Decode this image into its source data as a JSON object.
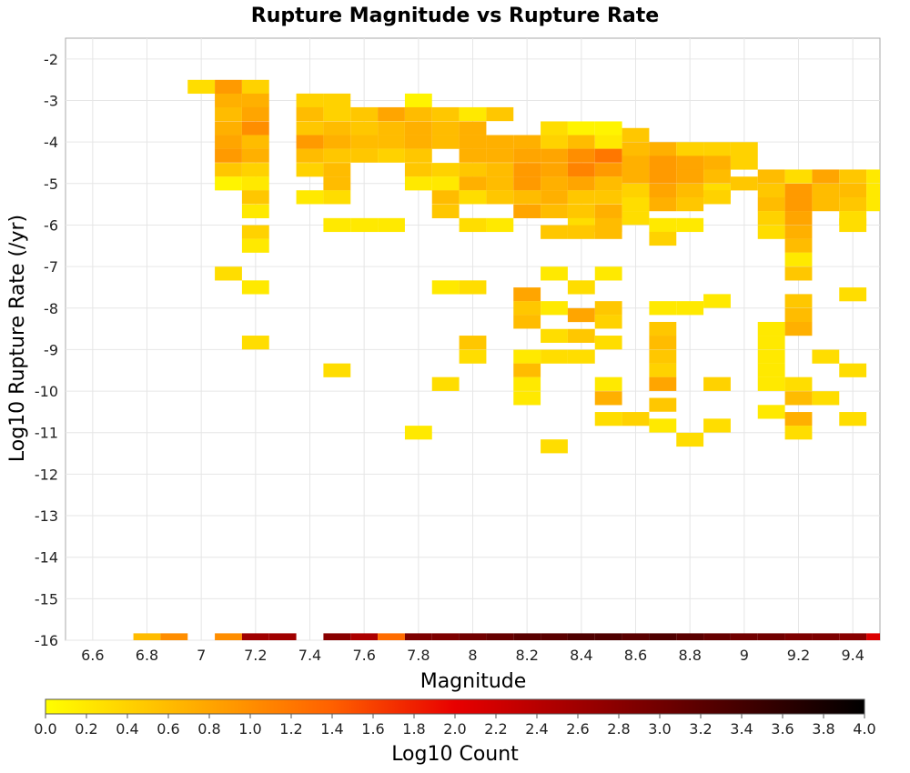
{
  "chart_data": {
    "type": "heatmap",
    "title": "Rupture Magnitude vs Rupture Rate",
    "xlabel": "Magnitude",
    "ylabel": "Log10 Rupture Rate (/yr)",
    "colorbar_label": "Log10 Count",
    "x_ticks": [
      "6.6",
      "6.8",
      "7",
      "7.2",
      "7.4",
      "7.6",
      "7.8",
      "8",
      "8.2",
      "8.4",
      "8.6",
      "8.8",
      "9",
      "9.2",
      "9.4"
    ],
    "y_ticks": [
      "-2",
      "-3",
      "-4",
      "-5",
      "-6",
      "-7",
      "-8",
      "-9",
      "-10",
      "-11",
      "-12",
      "-13",
      "-14",
      "-15",
      "-16"
    ],
    "colorbar_ticks": [
      "0.0",
      "0.2",
      "0.4",
      "0.6",
      "0.8",
      "1.0",
      "1.2",
      "1.4",
      "1.6",
      "1.8",
      "2.0",
      "2.2",
      "2.4",
      "2.6",
      "2.8",
      "3.0",
      "3.2",
      "3.4",
      "3.6",
      "3.8",
      "4.0"
    ],
    "xlim": [
      6.5,
      9.5
    ],
    "ylim": [
      -16,
      -1.5
    ],
    "clim": [
      0,
      4
    ],
    "bin_width_x": 0.1,
    "bin_height_y": 0.3333,
    "colormap": [
      "#ffff00",
      "#ffa500",
      "#ff6000",
      "#e80000",
      "#a00000",
      "#5a0000",
      "#000000"
    ],
    "grid": true,
    "cells": [
      [
        7.0,
        -2.67,
        0.3
      ],
      [
        7.1,
        -2.67,
        0.9
      ],
      [
        7.2,
        -2.67,
        0.4
      ],
      [
        7.1,
        -3.0,
        0.7
      ],
      [
        7.2,
        -3.0,
        0.7
      ],
      [
        7.1,
        -3.33,
        0.6
      ],
      [
        7.2,
        -3.33,
        0.8
      ],
      [
        7.1,
        -3.67,
        0.7
      ],
      [
        7.2,
        -3.67,
        1.0
      ],
      [
        7.1,
        -4.0,
        0.8
      ],
      [
        7.2,
        -4.0,
        0.6
      ],
      [
        7.1,
        -4.33,
        0.9
      ],
      [
        7.2,
        -4.33,
        0.7
      ],
      [
        7.1,
        -4.67,
        0.5
      ],
      [
        7.2,
        -4.67,
        0.4
      ],
      [
        7.2,
        -5.0,
        0.2
      ],
      [
        7.1,
        -5.0,
        0.1
      ],
      [
        7.2,
        -5.33,
        0.5
      ],
      [
        7.2,
        -5.67,
        0.2
      ],
      [
        7.2,
        -6.17,
        0.4
      ],
      [
        7.2,
        -6.5,
        0.2
      ],
      [
        7.1,
        -7.17,
        0.3
      ],
      [
        7.2,
        -7.5,
        0.2
      ],
      [
        7.2,
        -8.83,
        0.3
      ],
      [
        7.4,
        -3.0,
        0.4
      ],
      [
        7.5,
        -3.0,
        0.4
      ],
      [
        7.4,
        -3.33,
        0.6
      ],
      [
        7.5,
        -3.33,
        0.4
      ],
      [
        7.6,
        -3.33,
        0.5
      ],
      [
        7.7,
        -3.33,
        0.8
      ],
      [
        7.4,
        -3.67,
        0.5
      ],
      [
        7.5,
        -3.67,
        0.6
      ],
      [
        7.6,
        -3.67,
        0.5
      ],
      [
        7.7,
        -3.67,
        0.6
      ],
      [
        7.4,
        -4.0,
        0.9
      ],
      [
        7.5,
        -4.0,
        0.7
      ],
      [
        7.6,
        -4.0,
        0.6
      ],
      [
        7.7,
        -4.0,
        0.6
      ],
      [
        7.4,
        -4.33,
        0.6
      ],
      [
        7.5,
        -4.33,
        0.5
      ],
      [
        7.6,
        -4.33,
        0.5
      ],
      [
        7.7,
        -4.33,
        0.4
      ],
      [
        7.4,
        -4.67,
        0.4
      ],
      [
        7.5,
        -4.67,
        0.6
      ],
      [
        7.5,
        -5.0,
        0.6
      ],
      [
        7.4,
        -5.33,
        0.2
      ],
      [
        7.5,
        -5.33,
        0.3
      ],
      [
        7.5,
        -6.0,
        0.2
      ],
      [
        7.6,
        -6.0,
        0.2
      ],
      [
        7.7,
        -6.0,
        0.2
      ],
      [
        7.5,
        -9.5,
        0.3
      ],
      [
        7.8,
        -3.0,
        0.1
      ],
      [
        7.8,
        -3.33,
        0.6
      ],
      [
        7.9,
        -3.33,
        0.5
      ],
      [
        8.0,
        -3.33,
        0.2
      ],
      [
        8.1,
        -3.33,
        0.5
      ],
      [
        7.8,
        -3.67,
        0.7
      ],
      [
        7.9,
        -3.67,
        0.6
      ],
      [
        8.0,
        -3.67,
        0.7
      ],
      [
        7.8,
        -4.0,
        0.7
      ],
      [
        7.9,
        -4.0,
        0.6
      ],
      [
        8.0,
        -4.0,
        0.7
      ],
      [
        8.1,
        -4.0,
        0.7
      ],
      [
        8.2,
        -4.0,
        0.7
      ],
      [
        7.8,
        -4.33,
        0.5
      ],
      [
        8.0,
        -4.33,
        0.7
      ],
      [
        8.1,
        -4.33,
        0.7
      ],
      [
        8.2,
        -4.33,
        0.8
      ],
      [
        7.8,
        -4.67,
        0.5
      ],
      [
        7.9,
        -4.67,
        0.4
      ],
      [
        8.0,
        -4.67,
        0.5
      ],
      [
        8.1,
        -4.67,
        0.6
      ],
      [
        8.2,
        -4.67,
        0.9
      ],
      [
        7.8,
        -5.0,
        0.2
      ],
      [
        7.9,
        -5.0,
        0.2
      ],
      [
        8.0,
        -5.0,
        0.7
      ],
      [
        8.1,
        -5.0,
        0.6
      ],
      [
        8.2,
        -5.0,
        0.9
      ],
      [
        7.9,
        -5.33,
        0.6
      ],
      [
        8.0,
        -5.33,
        0.3
      ],
      [
        8.1,
        -5.33,
        0.5
      ],
      [
        8.2,
        -5.33,
        0.6
      ],
      [
        7.9,
        -5.67,
        0.5
      ],
      [
        8.2,
        -5.67,
        0.8
      ],
      [
        8.0,
        -6.0,
        0.3
      ],
      [
        8.1,
        -6.0,
        0.2
      ],
      [
        7.9,
        -7.5,
        0.2
      ],
      [
        8.0,
        -7.5,
        0.3
      ],
      [
        8.2,
        -7.67,
        0.8
      ],
      [
        8.2,
        -8.0,
        0.5
      ],
      [
        8.3,
        -8.0,
        0.2
      ],
      [
        8.2,
        -8.33,
        0.6
      ],
      [
        8.0,
        -8.83,
        0.5
      ],
      [
        8.0,
        -9.17,
        0.3
      ],
      [
        8.2,
        -9.17,
        0.2
      ],
      [
        8.2,
        -9.5,
        0.6
      ],
      [
        7.9,
        -9.83,
        0.3
      ],
      [
        8.2,
        -9.83,
        0.2
      ],
      [
        8.2,
        -10.17,
        0.2
      ],
      [
        7.8,
        -11.0,
        0.2
      ],
      [
        8.3,
        -11.33,
        0.3
      ],
      [
        8.3,
        -3.67,
        0.3
      ],
      [
        8.4,
        -3.67,
        0.1
      ],
      [
        8.5,
        -3.67,
        0.1
      ],
      [
        8.3,
        -4.0,
        0.4
      ],
      [
        8.4,
        -4.0,
        0.6
      ],
      [
        8.5,
        -4.0,
        0.2
      ],
      [
        8.3,
        -4.33,
        0.8
      ],
      [
        8.4,
        -4.33,
        1.0
      ],
      [
        8.5,
        -4.33,
        1.2
      ],
      [
        8.3,
        -4.67,
        0.8
      ],
      [
        8.4,
        -4.67,
        1.1
      ],
      [
        8.5,
        -4.67,
        0.9
      ],
      [
        8.3,
        -5.0,
        0.7
      ],
      [
        8.4,
        -5.0,
        0.8
      ],
      [
        8.5,
        -5.0,
        0.6
      ],
      [
        8.3,
        -5.33,
        0.7
      ],
      [
        8.4,
        -5.33,
        0.5
      ],
      [
        8.5,
        -5.33,
        0.5
      ],
      [
        8.3,
        -5.67,
        0.6
      ],
      [
        8.4,
        -5.67,
        0.5
      ],
      [
        8.5,
        -5.67,
        0.7
      ],
      [
        8.4,
        -6.0,
        0.3
      ],
      [
        8.5,
        -6.0,
        0.6
      ],
      [
        8.3,
        -6.17,
        0.5
      ],
      [
        8.4,
        -6.17,
        0.5
      ],
      [
        8.5,
        -6.17,
        0.6
      ],
      [
        8.3,
        -7.17,
        0.2
      ],
      [
        8.5,
        -7.17,
        0.2
      ],
      [
        8.4,
        -7.5,
        0.3
      ],
      [
        8.5,
        -8.0,
        0.5
      ],
      [
        8.4,
        -8.17,
        0.8
      ],
      [
        8.5,
        -8.33,
        0.4
      ],
      [
        8.3,
        -8.67,
        0.3
      ],
      [
        8.4,
        -8.67,
        0.5
      ],
      [
        8.5,
        -8.83,
        0.3
      ],
      [
        8.4,
        -9.17,
        0.3
      ],
      [
        8.3,
        -9.17,
        0.3
      ],
      [
        8.5,
        -9.83,
        0.2
      ],
      [
        8.5,
        -10.17,
        0.7
      ],
      [
        8.6,
        -10.67,
        0.4
      ],
      [
        8.5,
        -10.67,
        0.3
      ],
      [
        8.6,
        -3.83,
        0.5
      ],
      [
        8.6,
        -4.17,
        0.6
      ],
      [
        8.7,
        -4.17,
        0.7
      ],
      [
        8.8,
        -4.17,
        0.4
      ],
      [
        8.9,
        -4.17,
        0.4
      ],
      [
        9.0,
        -4.17,
        0.4
      ],
      [
        8.6,
        -4.5,
        0.7
      ],
      [
        8.7,
        -4.5,
        0.9
      ],
      [
        8.8,
        -4.5,
        0.8
      ],
      [
        8.9,
        -4.5,
        0.7
      ],
      [
        9.0,
        -4.5,
        0.4
      ],
      [
        8.6,
        -4.83,
        0.7
      ],
      [
        8.7,
        -4.83,
        0.9
      ],
      [
        8.8,
        -4.83,
        0.8
      ],
      [
        8.9,
        -4.83,
        0.6
      ],
      [
        8.6,
        -5.17,
        0.4
      ],
      [
        8.7,
        -5.17,
        0.8
      ],
      [
        8.8,
        -5.17,
        0.6
      ],
      [
        8.9,
        -5.17,
        0.3
      ],
      [
        9.0,
        -5.0,
        0.5
      ],
      [
        8.6,
        -5.5,
        0.3
      ],
      [
        8.7,
        -5.5,
        0.7
      ],
      [
        8.8,
        -5.5,
        0.5
      ],
      [
        8.9,
        -5.33,
        0.4
      ],
      [
        8.6,
        -5.83,
        0.3
      ],
      [
        8.7,
        -6.0,
        0.2
      ],
      [
        8.8,
        -6.0,
        0.2
      ],
      [
        8.7,
        -6.33,
        0.4
      ],
      [
        8.7,
        -8.0,
        0.2
      ],
      [
        8.8,
        -8.0,
        0.2
      ],
      [
        8.9,
        -7.83,
        0.2
      ],
      [
        8.7,
        -8.5,
        0.5
      ],
      [
        8.7,
        -8.83,
        0.6
      ],
      [
        8.7,
        -9.17,
        0.5
      ],
      [
        8.7,
        -9.5,
        0.4
      ],
      [
        8.7,
        -9.83,
        0.8
      ],
      [
        8.7,
        -10.33,
        0.5
      ],
      [
        8.7,
        -10.83,
        0.2
      ],
      [
        8.8,
        -11.17,
        0.3
      ],
      [
        8.9,
        -9.83,
        0.4
      ],
      [
        8.9,
        -10.83,
        0.3
      ],
      [
        9.1,
        -4.83,
        0.6
      ],
      [
        9.2,
        -4.83,
        0.3
      ],
      [
        9.3,
        -4.83,
        0.8
      ],
      [
        9.4,
        -4.83,
        0.5
      ],
      [
        9.5,
        -4.83,
        0.2
      ],
      [
        9.1,
        -5.17,
        0.5
      ],
      [
        9.2,
        -5.17,
        0.9
      ],
      [
        9.3,
        -5.17,
        0.6
      ],
      [
        9.4,
        -5.17,
        0.6
      ],
      [
        9.5,
        -5.17,
        0.2
      ],
      [
        9.1,
        -5.5,
        0.6
      ],
      [
        9.2,
        -5.5,
        0.9
      ],
      [
        9.3,
        -5.5,
        0.6
      ],
      [
        9.4,
        -5.5,
        0.5
      ],
      [
        9.5,
        -5.5,
        0.2
      ],
      [
        9.1,
        -5.83,
        0.4
      ],
      [
        9.2,
        -5.83,
        0.8
      ],
      [
        9.4,
        -5.83,
        0.3
      ],
      [
        9.1,
        -6.17,
        0.3
      ],
      [
        9.2,
        -6.17,
        0.7
      ],
      [
        9.4,
        -6.0,
        0.3
      ],
      [
        9.2,
        -6.5,
        0.6
      ],
      [
        9.2,
        -6.83,
        0.2
      ],
      [
        9.2,
        -7.17,
        0.5
      ],
      [
        9.2,
        -7.83,
        0.5
      ],
      [
        9.4,
        -7.67,
        0.3
      ],
      [
        9.2,
        -8.17,
        0.6
      ],
      [
        9.2,
        -8.5,
        0.7
      ],
      [
        9.1,
        -8.5,
        0.2
      ],
      [
        9.1,
        -8.83,
        0.2
      ],
      [
        9.1,
        -9.17,
        0.2
      ],
      [
        9.1,
        -9.5,
        0.2
      ],
      [
        9.1,
        -9.83,
        0.2
      ],
      [
        9.2,
        -9.83,
        0.3
      ],
      [
        9.3,
        -9.17,
        0.3
      ],
      [
        9.4,
        -9.5,
        0.3
      ],
      [
        9.2,
        -10.17,
        0.6
      ],
      [
        9.3,
        -10.17,
        0.3
      ],
      [
        9.1,
        -10.5,
        0.2
      ],
      [
        9.2,
        -10.67,
        0.7
      ],
      [
        9.2,
        -11.0,
        0.3
      ],
      [
        9.4,
        -10.67,
        0.3
      ],
      [
        6.8,
        -16.0,
        0.6
      ],
      [
        6.9,
        -16.0,
        1.0
      ],
      [
        7.1,
        -16.0,
        1.0
      ],
      [
        7.2,
        -16.0,
        2.6
      ],
      [
        7.3,
        -16.0,
        2.6
      ],
      [
        7.5,
        -16.0,
        2.8
      ],
      [
        7.6,
        -16.0,
        2.5
      ],
      [
        7.7,
        -16.0,
        1.3
      ],
      [
        7.8,
        -16.0,
        2.9
      ],
      [
        7.9,
        -16.0,
        2.9
      ],
      [
        8.0,
        -16.0,
        3.0
      ],
      [
        8.1,
        -16.0,
        3.1
      ],
      [
        8.2,
        -16.0,
        3.2
      ],
      [
        8.3,
        -16.0,
        3.2
      ],
      [
        8.4,
        -16.0,
        3.3
      ],
      [
        8.5,
        -16.0,
        3.3
      ],
      [
        8.6,
        -16.0,
        3.2
      ],
      [
        8.7,
        -16.0,
        3.3
      ],
      [
        8.8,
        -16.0,
        3.2
      ],
      [
        8.9,
        -16.0,
        3.1
      ],
      [
        9.0,
        -16.0,
        3.0
      ],
      [
        9.1,
        -16.0,
        3.0
      ],
      [
        9.2,
        -16.0,
        2.9
      ],
      [
        9.3,
        -16.0,
        2.9
      ],
      [
        9.4,
        -16.0,
        2.8
      ],
      [
        9.5,
        -16.0,
        2.1
      ]
    ]
  }
}
